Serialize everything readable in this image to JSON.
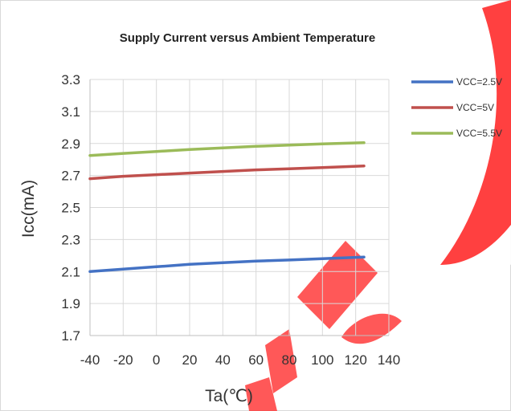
{
  "chart_data": {
    "type": "line",
    "title": "Supply Current versus Ambient Temperature",
    "xlabel": "Ta(℃)",
    "ylabel": "Icc(mA)",
    "xlim": [
      -40,
      140
    ],
    "ylim": [
      1.7,
      3.3
    ],
    "xticks": [
      -40,
      -20,
      0,
      20,
      40,
      60,
      80,
      100,
      120,
      140
    ],
    "yticks": [
      1.7,
      1.9,
      2.1,
      2.3,
      2.5,
      2.7,
      2.9,
      3.1,
      3.3
    ],
    "xtick_labels": [
      "-40",
      "-20",
      "0",
      "20",
      "40",
      "60",
      "80",
      "100",
      "120",
      "140"
    ],
    "ytick_labels": [
      "1.7",
      "1.9",
      "2.1",
      "2.3",
      "2.5",
      "2.7",
      "2.9",
      "3.1",
      "3.3"
    ],
    "grid": true,
    "legend_position": "right",
    "x": [
      -40,
      -20,
      0,
      20,
      40,
      60,
      80,
      100,
      125
    ],
    "series": [
      {
        "name": "VCC=2.5V",
        "color": "#4472C4",
        "values": [
          2.1,
          2.115,
          2.13,
          2.145,
          2.155,
          2.165,
          2.172,
          2.18,
          2.19
        ]
      },
      {
        "name": "VCC=5V",
        "color": "#C0504D",
        "values": [
          2.68,
          2.695,
          2.705,
          2.715,
          2.725,
          2.735,
          2.742,
          2.75,
          2.76
        ]
      },
      {
        "name": "VCC=5.5V",
        "color": "#9BBB59",
        "values": [
          2.825,
          2.838,
          2.85,
          2.862,
          2.872,
          2.882,
          2.89,
          2.897,
          2.905
        ]
      }
    ]
  }
}
